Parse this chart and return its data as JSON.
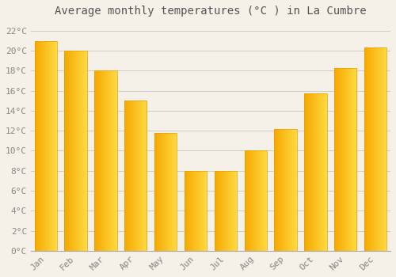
{
  "title": "Average monthly temperatures (°C ) in La Cumbre",
  "months": [
    "Jan",
    "Feb",
    "Mar",
    "Apr",
    "May",
    "Jun",
    "Jul",
    "Aug",
    "Sep",
    "Oct",
    "Nov",
    "Dec"
  ],
  "values": [
    21.0,
    20.0,
    18.0,
    15.0,
    11.8,
    8.0,
    8.0,
    10.0,
    12.2,
    15.7,
    18.3,
    20.3
  ],
  "bar_color_left": "#F5A800",
  "bar_color_right": "#FFD060",
  "bar_edge_color": "#E8A000",
  "background_color": "#F5F0E8",
  "plot_bg_color": "#F5F0E8",
  "grid_color": "#CCCCCC",
  "ylabel_ticks": [
    0,
    2,
    4,
    6,
    8,
    10,
    12,
    14,
    16,
    18,
    20,
    22
  ],
  "ylim": [
    0,
    23
  ],
  "title_fontsize": 10,
  "tick_fontsize": 8,
  "tick_color": "#888888",
  "title_color": "#555555",
  "bar_width": 0.75
}
